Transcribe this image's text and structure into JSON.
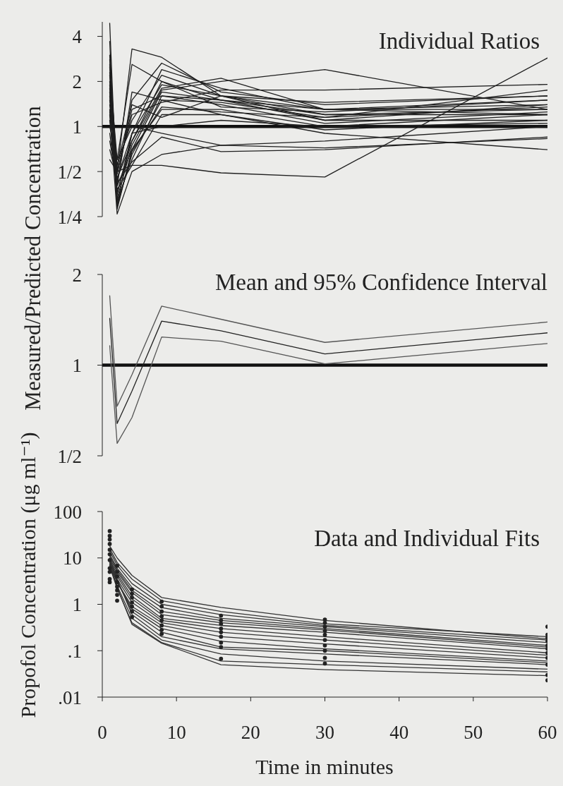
{
  "chart_data": [
    {
      "type": "line",
      "title": "Individual Ratios",
      "ylabel": "Measured/Predicted Concentration",
      "x": [
        1,
        2,
        4,
        8,
        16,
        30,
        60
      ],
      "xlim": [
        0,
        60
      ],
      "ylim": [
        0.25,
        5
      ],
      "yticks": [
        {
          "value": 0.25,
          "label": "1/4"
        },
        {
          "value": 0.5,
          "label": "1/2"
        },
        1,
        2,
        4
      ],
      "log": "y",
      "tick_labels": "y",
      "ref_lines": [
        {
          "axis": "y",
          "value": 1,
          "color": "#111111"
        }
      ],
      "series": [
        {
          "color": "#1f1f1f",
          "values": [
            4.9,
            0.3,
            0.9,
            1.9,
            1.6,
            1.3,
            1.3
          ]
        },
        {
          "color": "#1f1f1f",
          "values": [
            3.7,
            0.28,
            0.7,
            1.7,
            1.5,
            1.2,
            1.2
          ]
        },
        {
          "color": "#1f1f1f",
          "values": [
            2.8,
            0.5,
            3.3,
            2.9,
            1.6,
            1.1,
            1.4
          ]
        },
        {
          "color": "#1f1f1f",
          "values": [
            2.3,
            0.6,
            2.6,
            2.0,
            1.5,
            1.3,
            1.5
          ]
        },
        {
          "color": "#1f1f1f",
          "values": [
            2.5,
            0.42,
            1.5,
            2.65,
            1.7,
            1.4,
            1.6
          ]
        },
        {
          "color": "#1f1f1f",
          "values": [
            1.8,
            0.35,
            0.9,
            2.4,
            1.8,
            1.3,
            1.4
          ]
        },
        {
          "color": "#1f1f1f",
          "values": [
            2.0,
            0.55,
            1.1,
            2.2,
            1.6,
            1.2,
            1.3
          ]
        },
        {
          "color": "#1f1f1f",
          "values": [
            1.5,
            0.45,
            0.8,
            1.8,
            2.1,
            1.3,
            1.2
          ]
        },
        {
          "color": "#1f1f1f",
          "values": [
            1.3,
            0.32,
            0.6,
            1.6,
            1.5,
            1.1,
            1.1
          ]
        },
        {
          "color": "#1f1f1f",
          "values": [
            1.1,
            0.4,
            0.7,
            1.3,
            1.3,
            1.0,
            1.2
          ]
        },
        {
          "color": "#1f1f1f",
          "values": [
            0.9,
            0.38,
            0.55,
            1.2,
            1.2,
            0.95,
            1.1
          ]
        },
        {
          "color": "#1f1f1f",
          "values": [
            0.7,
            0.45,
            0.9,
            1.0,
            1.1,
            1.0,
            1.05
          ]
        },
        {
          "color": "#1f1f1f",
          "values": [
            1.2,
            0.26,
            0.5,
            0.65,
            0.75,
            0.72,
            0.83
          ]
        },
        {
          "color": "#1f1f1f",
          "values": [
            0.6,
            0.5,
            0.55,
            0.55,
            0.49,
            0.46,
            2.87
          ]
        },
        {
          "color": "#1f1f1f",
          "values": [
            1.6,
            0.4,
            1.7,
            1.5,
            1.2,
            0.9,
            0.7
          ]
        },
        {
          "color": "#1f1f1f",
          "values": [
            2.2,
            0.33,
            0.75,
            1.75,
            2.0,
            2.4,
            1.3
          ]
        },
        {
          "color": "#1f1f1f",
          "values": [
            1.4,
            0.5,
            1.2,
            1.45,
            1.75,
            1.75,
            1.91
          ]
        },
        {
          "color": "#1f1f1f",
          "values": [
            1.0,
            0.6,
            1.0,
            0.9,
            0.75,
            0.8,
            1.0
          ]
        },
        {
          "color": "#1f1f1f",
          "values": [
            3.0,
            0.3,
            0.65,
            1.5,
            1.45,
            1.15,
            1.35
          ]
        },
        {
          "color": "#1f1f1f",
          "values": [
            1.7,
            0.36,
            0.8,
            2.0,
            1.35,
            1.25,
            1.5
          ]
        },
        {
          "color": "#1f1f1f",
          "values": [
            0.8,
            0.42,
            0.58,
            0.85,
            0.68,
            0.7,
            0.85
          ]
        },
        {
          "color": "#1f1f1f",
          "values": [
            2.6,
            0.48,
            1.3,
            1.6,
            1.4,
            1.05,
            1.25
          ]
        },
        {
          "color": "#1f1f1f",
          "values": [
            1.9,
            0.29,
            0.68,
            1.35,
            1.25,
            1.15,
            1.75
          ]
        },
        {
          "color": "#1f1f1f",
          "values": [
            1.25,
            0.55,
            1.4,
            1.15,
            1.6,
            1.45,
            1.6
          ]
        }
      ]
    },
    {
      "type": "line",
      "title": "Mean and 95% Confidence Interval",
      "x": [
        1,
        2,
        4,
        8,
        16,
        30,
        60
      ],
      "xlim": [
        0,
        60
      ],
      "ylim": [
        0.5,
        2
      ],
      "yticks": [
        {
          "value": 0.5,
          "label": "1/2"
        },
        1,
        2
      ],
      "log": "y",
      "tick_labels": "y",
      "ref_lines": [
        {
          "axis": "y",
          "value": 1,
          "color": "#111111"
        }
      ],
      "series": [
        {
          "color": "#555555",
          "values": [
            1.7,
            0.73,
            0.93,
            1.57,
            1.42,
            1.19,
            1.39
          ]
        },
        {
          "color": "#222222",
          "values": [
            1.43,
            0.64,
            0.82,
            1.4,
            1.3,
            1.09,
            1.28
          ]
        },
        {
          "color": "#555555",
          "values": [
            1.16,
            0.55,
            0.67,
            1.24,
            1.2,
            1.01,
            1.18
          ]
        }
      ]
    },
    {
      "type": "line",
      "title": "Data and Individual Fits",
      "xlabel": "Time in minutes",
      "ylabel": "Propofol Concentration (μg ml⁻¹)",
      "x": [
        1,
        2,
        4,
        8,
        16,
        30,
        60
      ],
      "xlim": [
        0,
        60
      ],
      "xticks": [
        0,
        10,
        20,
        30,
        40,
        50,
        60
      ],
      "ylim": [
        0.01,
        100
      ],
      "yticks": [
        {
          "value": 0.01,
          "label": ".01"
        },
        {
          "value": 0.1,
          "label": ".1"
        },
        1,
        10,
        100
      ],
      "log": "y",
      "series": [
        {
          "color": "#333333",
          "values": [
            18,
            10,
            4.2,
            1.4,
            0.86,
            0.45,
            0.18
          ]
        },
        {
          "color": "#333333",
          "values": [
            16,
            8,
            3.5,
            1.2,
            0.7,
            0.38,
            0.2
          ]
        },
        {
          "color": "#333333",
          "values": [
            14,
            7,
            2.8,
            1.0,
            0.6,
            0.35,
            0.17
          ]
        },
        {
          "color": "#333333",
          "values": [
            12,
            6,
            2.3,
            0.85,
            0.5,
            0.33,
            0.15
          ]
        },
        {
          "color": "#333333",
          "values": [
            11,
            5.5,
            2.0,
            0.7,
            0.45,
            0.3,
            0.13
          ]
        },
        {
          "color": "#333333",
          "values": [
            10,
            5,
            1.8,
            0.6,
            0.4,
            0.28,
            0.12
          ]
        },
        {
          "color": "#333333",
          "values": [
            9,
            4.5,
            1.5,
            0.5,
            0.35,
            0.25,
            0.11
          ]
        },
        {
          "color": "#333333",
          "values": [
            8,
            4,
            1.3,
            0.45,
            0.3,
            0.2,
            0.09
          ]
        },
        {
          "color": "#333333",
          "values": [
            7.5,
            3.5,
            1.1,
            0.4,
            0.25,
            0.17,
            0.08
          ]
        },
        {
          "color": "#333333",
          "values": [
            7,
            3,
            0.9,
            0.35,
            0.2,
            0.14,
            0.07
          ]
        },
        {
          "color": "#333333",
          "values": [
            8,
            3,
            0.8,
            0.3,
            0.16,
            0.11,
            0.06
          ]
        },
        {
          "color": "#333333",
          "values": [
            9,
            3.2,
            0.7,
            0.25,
            0.12,
            0.1,
            0.055
          ]
        },
        {
          "color": "#333333",
          "values": [
            10,
            3.5,
            0.6,
            0.2,
            0.11,
            0.085,
            0.05
          ]
        },
        {
          "color": "#333333",
          "values": [
            7,
            2.5,
            0.5,
            0.17,
            0.085,
            0.06,
            0.04
          ]
        },
        {
          "color": "#333333",
          "values": [
            6.5,
            2.2,
            0.4,
            0.15,
            0.06,
            0.05,
            0.035
          ]
        },
        {
          "color": "#333333",
          "values": [
            6.8,
            2.3,
            0.37,
            0.145,
            0.05,
            0.039,
            0.029
          ]
        },
        {
          "type": "scatter",
          "marker": "circle",
          "color": "#222222",
          "x": [
            1,
            1,
            1,
            1,
            1,
            1,
            1,
            1,
            1,
            1,
            1,
            2,
            2,
            2,
            2,
            2,
            2,
            2,
            2,
            4,
            4,
            4,
            4,
            4,
            4,
            4,
            8,
            8,
            8,
            8,
            8,
            8,
            8,
            8,
            16,
            16,
            16,
            16,
            16,
            16,
            16,
            16,
            16,
            30,
            30,
            30,
            30,
            30,
            30,
            30,
            30,
            30,
            30,
            60,
            60,
            60,
            60,
            60,
            60,
            60,
            60,
            60,
            60,
            60
          ],
          "values": [
            38,
            30,
            25,
            20,
            15,
            12,
            9,
            6,
            5,
            3.5,
            3,
            6.8,
            5,
            4,
            3,
            2.4,
            2,
            1.6,
            1.2,
            2.1,
            1.7,
            1.4,
            1.1,
            0.9,
            0.7,
            0.53,
            1.15,
            0.9,
            0.7,
            0.55,
            0.45,
            0.35,
            0.28,
            0.23,
            0.57,
            0.45,
            0.38,
            0.3,
            0.25,
            0.2,
            0.15,
            0.12,
            0.067,
            0.47,
            0.4,
            0.33,
            0.27,
            0.22,
            0.17,
            0.13,
            0.1,
            0.07,
            0.053,
            0.33,
            0.22,
            0.19,
            0.16,
            0.13,
            0.11,
            0.09,
            0.07,
            0.05,
            0.03,
            0.023
          ]
        }
      ]
    }
  ]
}
